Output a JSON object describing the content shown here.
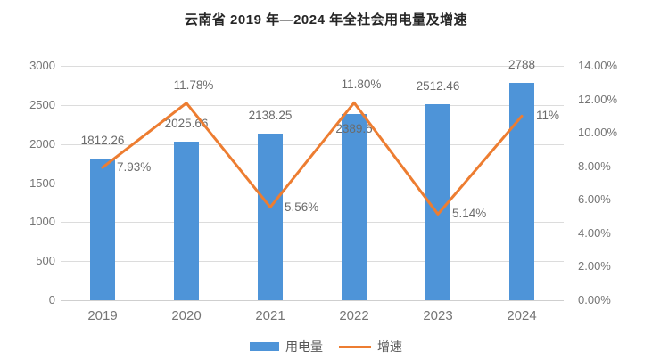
{
  "title": "云南省 2019 年—2024 年全社会用电量及增速",
  "chart_data": {
    "type": "bar+line combo",
    "title": "云南省 2019 年—2024 年全社会用电量及增速",
    "categories": [
      "2019",
      "2020",
      "2021",
      "2022",
      "2023",
      "2024"
    ],
    "series": [
      {
        "name": "用电量",
        "type": "bar",
        "axis": "left",
        "color": "#4E94D8",
        "values": [
          1812.26,
          2025.66,
          2138.25,
          2389.5,
          2512.46,
          2788
        ],
        "labels": [
          "1812.26",
          "2025.66",
          "2138.25",
          "2389.5",
          "2512.46",
          "2788"
        ],
        "label_pos": [
          "above",
          "above",
          "above",
          "inside",
          "above",
          "above"
        ]
      },
      {
        "name": "增速",
        "type": "line",
        "axis": "right",
        "color": "#ED7D31",
        "values": [
          7.93,
          11.78,
          5.56,
          11.8,
          5.14,
          11
        ],
        "labels": [
          "7.93%",
          "11.78%",
          "5.56%",
          "11.80%",
          "5.14%",
          "11%"
        ],
        "label_pos": [
          "right",
          "above",
          "right",
          "above",
          "right",
          "right"
        ]
      }
    ],
    "left_axis": {
      "min": 0,
      "max": 3000,
      "step": 500,
      "ticks": [
        "0",
        "500",
        "1000",
        "1500",
        "2000",
        "2500",
        "3000"
      ]
    },
    "right_axis": {
      "min": 0,
      "max": 14,
      "step": 2,
      "ticks": [
        "0.00%",
        "2.00%",
        "4.00%",
        "6.00%",
        "8.00%",
        "10.00%",
        "12.00%",
        "14.00%"
      ]
    },
    "grid": true,
    "legend_position": "bottom"
  },
  "legend": {
    "items": [
      {
        "label": "用电量",
        "type": "bar",
        "color": "#4E94D8"
      },
      {
        "label": "增速",
        "type": "line",
        "color": "#ED7D31"
      }
    ]
  },
  "colors": {
    "bar": "#4E94D8",
    "line": "#ED7D31",
    "grid": "#DCDCDC",
    "axis_text": "#757575",
    "data_label_text": "#6B6B6B",
    "title_text": "#262626",
    "background": "#FFFFFF"
  }
}
